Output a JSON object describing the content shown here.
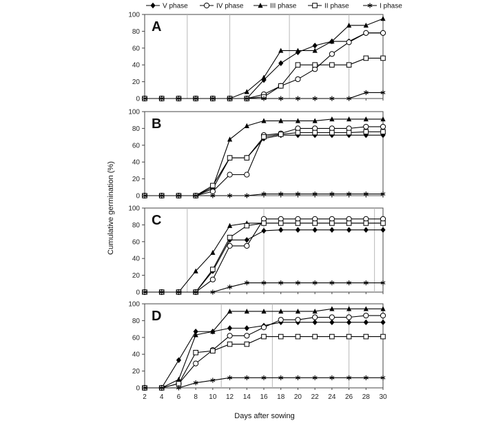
{
  "chart_data": {
    "type": "line",
    "xlabel": "Days after sowing",
    "ylabel": "Cumulative germination (%)",
    "x": [
      2,
      4,
      6,
      8,
      10,
      12,
      14,
      16,
      18,
      20,
      22,
      24,
      26,
      28,
      30
    ],
    "xticks": [
      "2",
      "4",
      "6",
      "8",
      "10",
      "12",
      "14",
      "16",
      "18",
      "20",
      "22",
      "24",
      "26",
      "28",
      "30"
    ],
    "ylim": [
      0,
      100
    ],
    "yticks": [
      "0",
      "20",
      "40",
      "60",
      "80",
      "100"
    ],
    "legend": [
      {
        "name": "V phase",
        "marker": "diamond"
      },
      {
        "name": "IV phase",
        "marker": "circle"
      },
      {
        "name": "III phase",
        "marker": "triangle"
      },
      {
        "name": "II phase",
        "marker": "square"
      },
      {
        "name": "I phase",
        "marker": "star"
      }
    ],
    "panels": [
      {
        "label": "A",
        "vlines": [
          7,
          12,
          19,
          26
        ],
        "series": [
          {
            "name": "V phase",
            "values": [
              0,
              0,
              0,
              0,
              0,
              0,
              0,
              22,
              42,
              55,
              63,
              68,
              68,
              78,
              78
            ]
          },
          {
            "name": "IV phase",
            "values": [
              0,
              0,
              0,
              0,
              0,
              0,
              0,
              5,
              15,
              23,
              35,
              53,
              67,
              78,
              78
            ]
          },
          {
            "name": "III phase",
            "values": [
              0,
              0,
              0,
              0,
              0,
              0,
              8,
              25,
              57,
              57,
              57,
              68,
              87,
              87,
              95
            ]
          },
          {
            "name": "II phase",
            "values": [
              0,
              0,
              0,
              0,
              0,
              0,
              0,
              2,
              15,
              40,
              40,
              40,
              40,
              48,
              48
            ]
          },
          {
            "name": "I phase",
            "values": [
              0,
              0,
              0,
              0,
              0,
              0,
              0,
              0,
              0,
              0,
              0,
              0,
              0,
              7,
              7
            ]
          }
        ]
      },
      {
        "label": "B",
        "vlines": [],
        "series": [
          {
            "name": "V phase",
            "values": [
              0,
              0,
              0,
              0,
              8,
              45,
              45,
              68,
              72,
              72,
              72,
              72,
              72,
              72,
              72
            ]
          },
          {
            "name": "IV phase",
            "values": [
              0,
              0,
              0,
              0,
              5,
              25,
              25,
              72,
              74,
              80,
              80,
              80,
              80,
              82,
              82
            ]
          },
          {
            "name": "III phase",
            "values": [
              0,
              0,
              0,
              0,
              10,
              67,
              83,
              89,
              89,
              89,
              89,
              91,
              91,
              91,
              91
            ]
          },
          {
            "name": "II phase",
            "values": [
              0,
              0,
              0,
              0,
              12,
              45,
              45,
              70,
              73,
              75,
              75,
              75,
              75,
              76,
              76
            ]
          },
          {
            "name": "I phase",
            "values": [
              0,
              0,
              0,
              0,
              0,
              0,
              0,
              2,
              2,
              2,
              2,
              2,
              2,
              2,
              2
            ]
          }
        ]
      },
      {
        "label": "C",
        "vlines": [
          7,
          16,
          29
        ],
        "series": [
          {
            "name": "V phase",
            "values": [
              0,
              0,
              0,
              0,
              25,
              62,
              62,
              73,
              74,
              74,
              74,
              74,
              74,
              74,
              74
            ]
          },
          {
            "name": "IV phase",
            "values": [
              0,
              0,
              0,
              0,
              15,
              55,
              55,
              87,
              87,
              87,
              87,
              87,
              87,
              87,
              87
            ]
          },
          {
            "name": "III phase",
            "values": [
              0,
              0,
              0,
              25,
              47,
              79,
              82,
              82,
              82,
              82,
              82,
              82,
              82,
              82,
              82
            ]
          },
          {
            "name": "II phase",
            "values": [
              0,
              0,
              0,
              0,
              27,
              65,
              79,
              82,
              82,
              82,
              82,
              82,
              82,
              82,
              82
            ]
          },
          {
            "name": "I phase",
            "values": [
              0,
              0,
              0,
              0,
              0,
              6,
              11,
              11,
              11,
              11,
              11,
              11,
              11,
              11,
              11
            ]
          }
        ]
      },
      {
        "label": "D",
        "vlines": [
          11,
          17,
          26
        ],
        "series": [
          {
            "name": "V phase",
            "values": [
              0,
              0,
              33,
              67,
              67,
              71,
              71,
              74,
              78,
              78,
              78,
              78,
              78,
              78,
              78
            ]
          },
          {
            "name": "IV phase",
            "values": [
              0,
              0,
              5,
              29,
              45,
              62,
              62,
              72,
              81,
              81,
              84,
              84,
              84,
              86,
              86
            ]
          },
          {
            "name": "III phase",
            "values": [
              0,
              0,
              10,
              63,
              67,
              91,
              91,
              91,
              91,
              91,
              91,
              94,
              94,
              94,
              94
            ]
          },
          {
            "name": "II phase",
            "values": [
              0,
              0,
              5,
              42,
              44,
              52,
              52,
              61,
              61,
              61,
              61,
              61,
              61,
              61,
              61
            ]
          },
          {
            "name": "I phase",
            "values": [
              0,
              0,
              0,
              6,
              9,
              12,
              12,
              12,
              12,
              12,
              12,
              12,
              12,
              12,
              12
            ]
          }
        ]
      }
    ]
  }
}
